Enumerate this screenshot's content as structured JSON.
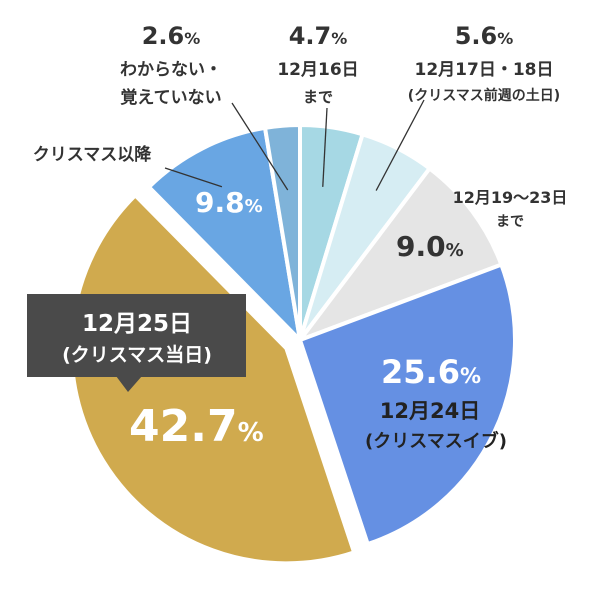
{
  "chart_data": {
    "type": "pie",
    "title": "",
    "unit": "%",
    "slices": [
      {
        "key": "s1",
        "value": 4.7,
        "value_text": "4.7",
        "label_lines": [
          "12月16日",
          "まで"
        ],
        "color": "#a6d8e4"
      },
      {
        "key": "s2",
        "value": 5.6,
        "value_text": "5.6",
        "label_lines": [
          "12月17日・18日",
          "(クリスマス前週の土日)"
        ],
        "color": "#d6edf3"
      },
      {
        "key": "s3",
        "value": 9.0,
        "value_text": "9.0",
        "label_lines": [
          "12月19〜23日",
          "まで"
        ],
        "color": "#e5e5e5"
      },
      {
        "key": "s4",
        "value": 25.6,
        "value_text": "25.6",
        "label_lines": [
          "12月24日",
          "(クリスマスイブ)"
        ],
        "color": "#6590e3"
      },
      {
        "key": "s5",
        "value": 42.7,
        "value_text": "42.7",
        "label_lines": [
          "12月25日",
          "(クリスマス当日)"
        ],
        "color": "#d0aa4e"
      },
      {
        "key": "s6",
        "value": 9.8,
        "value_text": "9.8",
        "label_lines": [
          "クリスマス以降"
        ],
        "color": "#69a6e3"
      },
      {
        "key": "s7",
        "value": 2.6,
        "value_text": "2.6",
        "label_lines": [
          "わからない・",
          "覚えていない"
        ],
        "color": "#7fb3d9"
      }
    ]
  }
}
